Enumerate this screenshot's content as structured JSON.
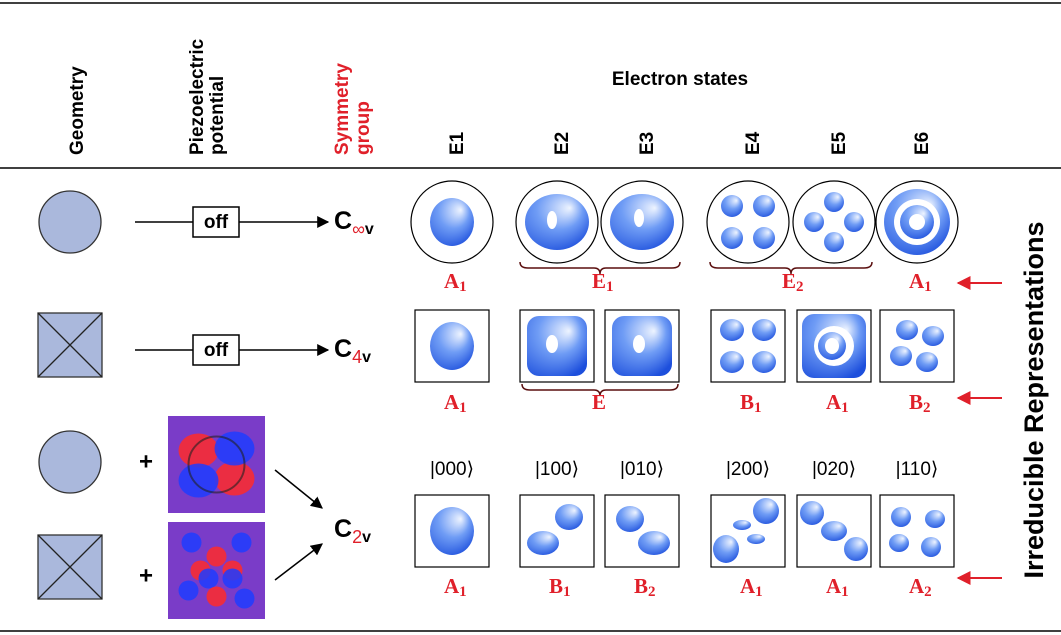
{
  "headers": {
    "geometry": "Geometry",
    "piezo": [
      "Piezoelectric",
      "potential"
    ],
    "symmetry": [
      "Symmetry",
      "group"
    ],
    "electron_states": "Electron states",
    "states": [
      "E1",
      "E2",
      "E3",
      "E4",
      "E5",
      "E6"
    ]
  },
  "rows": [
    {
      "switch": "off",
      "group": {
        "main": "C",
        "order": "∞",
        "suffix": "v"
      },
      "labels": [
        {
          "main": "A",
          "sub": "1"
        },
        {
          "main": "E",
          "sub": "1"
        },
        {
          "main": "E",
          "sub": "2"
        },
        {
          "main": "A",
          "sub": "1"
        }
      ]
    },
    {
      "switch": "off",
      "group": {
        "main": "C",
        "order": "4",
        "suffix": "v"
      },
      "labels": [
        {
          "main": "A",
          "sub": "1"
        },
        {
          "main": "E"
        },
        {
          "main": "B",
          "sub": "1"
        },
        {
          "main": "A",
          "sub": "1"
        },
        {
          "main": "B",
          "sub": "2"
        }
      ]
    },
    {
      "plus": [
        "+",
        "+"
      ],
      "group": {
        "main": "C",
        "order": "2",
        "suffix": "v"
      },
      "states": [
        "|000⟩",
        "|100⟩",
        "|010⟩",
        "|200⟩",
        "|020⟩",
        "|110⟩"
      ],
      "labels": [
        {
          "main": "A",
          "sub": "1"
        },
        {
          "main": "B",
          "sub": "1"
        },
        {
          "main": "B",
          "sub": "2"
        },
        {
          "main": "A",
          "sub": "1"
        },
        {
          "main": "A",
          "sub": "1"
        },
        {
          "main": "A",
          "sub": "2"
        }
      ]
    }
  ],
  "side_label": "Irreducible Representations"
}
